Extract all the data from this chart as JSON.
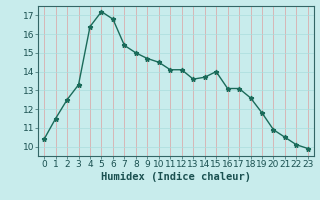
{
  "x": [
    0,
    1,
    2,
    3,
    4,
    5,
    6,
    7,
    8,
    9,
    10,
    11,
    12,
    13,
    14,
    15,
    16,
    17,
    18,
    19,
    20,
    21,
    22,
    23
  ],
  "y": [
    10.4,
    11.5,
    12.5,
    13.3,
    16.4,
    17.2,
    16.8,
    15.4,
    15.0,
    14.7,
    14.5,
    14.1,
    14.1,
    13.6,
    13.7,
    14.0,
    13.1,
    13.1,
    12.6,
    11.8,
    10.9,
    10.5,
    10.1,
    9.9
  ],
  "xlabel": "Humidex (Indice chaleur)",
  "ylim": [
    9.5,
    17.5
  ],
  "xlim": [
    -0.5,
    23.5
  ],
  "yticks": [
    10,
    11,
    12,
    13,
    14,
    15,
    16,
    17
  ],
  "xticks": [
    0,
    1,
    2,
    3,
    4,
    5,
    6,
    7,
    8,
    9,
    10,
    11,
    12,
    13,
    14,
    15,
    16,
    17,
    18,
    19,
    20,
    21,
    22,
    23
  ],
  "line_color": "#1a6b5a",
  "marker": "*",
  "marker_size": 3.5,
  "bg_color": "#c8ecec",
  "grid_color": "#aadddd",
  "tick_label_fontsize": 6.5,
  "xlabel_fontsize": 7.5
}
